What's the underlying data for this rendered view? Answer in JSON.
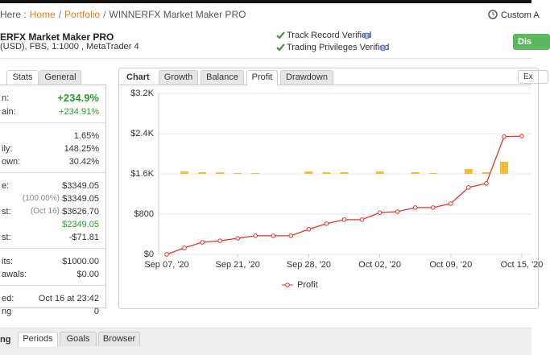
{
  "breadcrumb": {
    "prefix": "Here :",
    "separator": "/",
    "items": [
      "Home",
      "Portfolio",
      "WINNERFX Market Maker PRO"
    ]
  },
  "custom": "Custom A",
  "header": {
    "title": "ERFX Market Maker PRO",
    "subtitle": "(USD), FBS, 1:1000 , MetaTrader 4",
    "verified": [
      "Track Record Verified",
      "Trading Privileges Verified"
    ],
    "button": "Dis"
  },
  "left_tabs": [
    "Stats",
    "General"
  ],
  "stats": [
    [
      {
        "label": "n:",
        "value": "+234.9%"
      },
      {
        "label": "ain:",
        "value": "+234.91%"
      }
    ],
    [
      {
        "value": "1.65%"
      },
      {
        "label": "ily:",
        "value": "148.25%"
      },
      {
        "label": "own:",
        "value": "30.42%"
      }
    ],
    [
      {
        "label": "e:",
        "value": "$3349.05"
      },
      {
        "note": "(100.00%)",
        "value": "$3349.05"
      },
      {
        "label": "st:",
        "note": "(Oct 16)",
        "value": "$3626.70"
      },
      {
        "value": "$2349.05"
      },
      {
        "label": "st:",
        "value": "-$71.81"
      }
    ],
    [
      {
        "label": "its:",
        "value": "$1000.00"
      },
      {
        "label": "awals:",
        "value": "$0.00"
      }
    ],
    [
      {
        "label": "ed:",
        "value": "Oct 16 at 23:42"
      },
      {
        "label": "ng",
        "value": "0"
      }
    ]
  ],
  "chart_tabs": {
    "label": "Chart",
    "tabs": [
      "Growth",
      "Balance",
      "Profit",
      "Drawdown"
    ],
    "export": "Ex"
  },
  "chart_data": {
    "type": "line",
    "categories": [
      "Sep 07, '20",
      null,
      null,
      null,
      "Sep 21, '20",
      null,
      null,
      null,
      "Sep 28, '20",
      null,
      null,
      null,
      "Oct 02, '20",
      null,
      null,
      null,
      "Oct 09, '20",
      null,
      null,
      null,
      "Oct 15, '20"
    ],
    "series": [
      {
        "name": "Profit",
        "color": "#e8302a",
        "values": [
          0,
          130,
          240,
          270,
          320,
          370,
          370,
          370,
          500,
          610,
          690,
          690,
          830,
          850,
          930,
          930,
          1010,
          1330,
          1410,
          2340,
          2350
        ]
      },
      {
        "type": "bar",
        "color": "#f7bb3a",
        "axis": "y2",
        "values": [
          0,
          3,
          2,
          2,
          1,
          1,
          0,
          0,
          3,
          2,
          2,
          0,
          3,
          0,
          2,
          1,
          0,
          6,
          2,
          15,
          0
        ]
      }
    ],
    "ylim": [
      0,
      3200
    ],
    "yticks": [
      {
        "value": 0,
        "label": "$0"
      },
      {
        "value": 800,
        "label": "$800"
      },
      {
        "value": 1600,
        "label": "$1.6K"
      },
      {
        "value": 2400,
        "label": "$2.4K"
      },
      {
        "value": 3200,
        "label": "$3.2K"
      }
    ],
    "y2lim": [
      -100,
      100
    ],
    "grid": true
  },
  "bottom_tabs": [
    "ng",
    "Periods",
    "Goals",
    "Browser"
  ]
}
